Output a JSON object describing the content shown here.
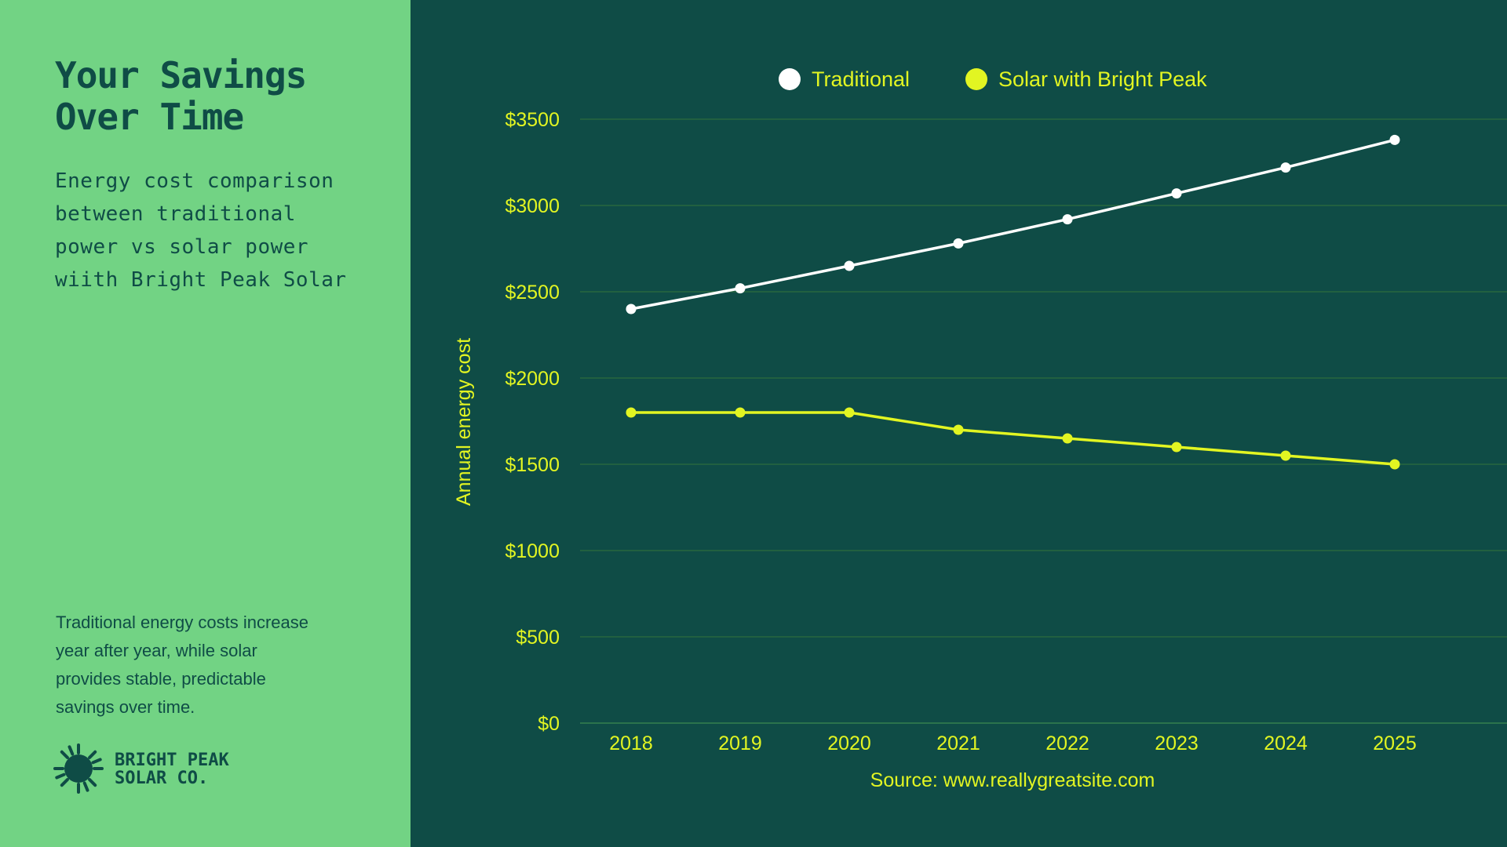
{
  "sidebar": {
    "title_line1": "Your Savings",
    "title_line2": "Over Time",
    "subtitle_lines": [
      "Energy cost comparison",
      "between traditional",
      "power vs solar power",
      "wiith Bright Peak Solar"
    ],
    "note_lines": [
      "Traditional energy costs increase",
      "year after year, while solar",
      "provides stable, predictable",
      "savings over time."
    ],
    "brand_line1": "BRIGHT PEAK",
    "brand_line2": "SOLAR CO."
  },
  "colors": {
    "background": "#0f4c46",
    "sidebar": "#72d384",
    "accent": "#e2f522",
    "traditional": "#ffffff",
    "solar": "#e2f522",
    "grid": "#2c6b3e"
  },
  "chart_data": {
    "type": "line",
    "categories": [
      "2018",
      "2019",
      "2020",
      "2021",
      "2022",
      "2023",
      "2024",
      "2025"
    ],
    "series": [
      {
        "name": "Traditional",
        "values": [
          2400,
          2520,
          2650,
          2780,
          2920,
          3070,
          3220,
          3380
        ]
      },
      {
        "name": "Solar with Bright Peak",
        "values": [
          1800,
          1800,
          1800,
          1700,
          1650,
          1600,
          1550,
          1500
        ]
      }
    ],
    "yticks": [
      0,
      500,
      1000,
      1500,
      2000,
      2500,
      3000,
      3500
    ],
    "ytick_labels": [
      "$0",
      "$500",
      "$1000",
      "$1500",
      "$2000",
      "$2500",
      "$3000",
      "$3500"
    ],
    "ylim": [
      0,
      3500
    ],
    "ylabel": "Annual energy cost",
    "xlabel": "",
    "source": "Source: www.reallygreatsite.com",
    "legend_position": "top-center",
    "grid": true
  }
}
